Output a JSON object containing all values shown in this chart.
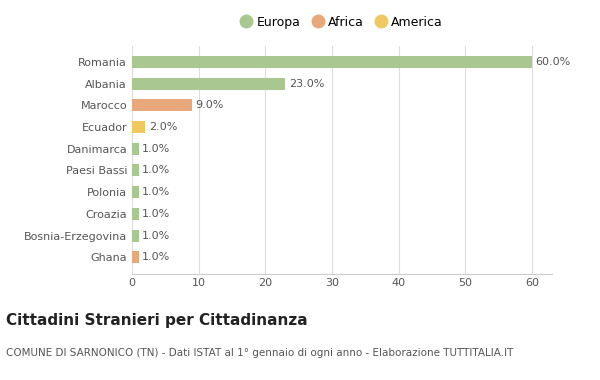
{
  "countries": [
    "Romania",
    "Albania",
    "Marocco",
    "Ecuador",
    "Danimarca",
    "Paesi Bassi",
    "Polonia",
    "Croazia",
    "Bosnia-Erzegovina",
    "Ghana"
  ],
  "values": [
    60.0,
    23.0,
    9.0,
    2.0,
    1.0,
    1.0,
    1.0,
    1.0,
    1.0,
    1.0
  ],
  "colors": [
    "#a8c890",
    "#a8c890",
    "#e8a87c",
    "#f0c860",
    "#a8c890",
    "#a8c890",
    "#a8c890",
    "#a8c890",
    "#a8c890",
    "#e8a87c"
  ],
  "legend": [
    {
      "label": "Europa",
      "color": "#a8c890"
    },
    {
      "label": "Africa",
      "color": "#e8a87c"
    },
    {
      "label": "America",
      "color": "#f0c860"
    }
  ],
  "title": "Cittadini Stranieri per Cittadinanza",
  "subtitle": "COMUNE DI SARNONICO (TN) - Dati ISTAT al 1° gennaio di ogni anno - Elaborazione TUTTITALIA.IT",
  "xlim": [
    0,
    63
  ],
  "xticks": [
    0,
    10,
    20,
    30,
    40,
    50,
    60
  ],
  "background_color": "#ffffff",
  "bar_height": 0.55,
  "title_fontsize": 11,
  "subtitle_fontsize": 7.5,
  "label_fontsize": 8,
  "tick_fontsize": 8,
  "legend_fontsize": 9
}
